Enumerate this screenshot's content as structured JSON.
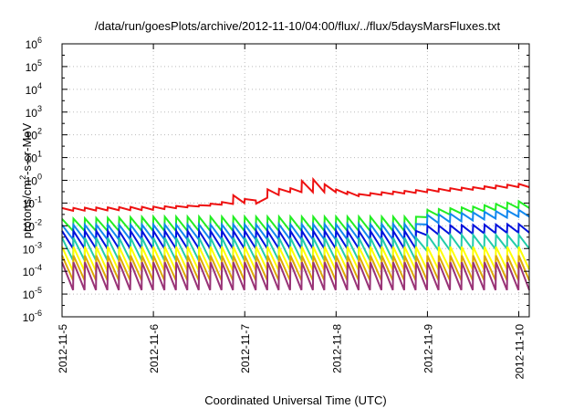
{
  "chart_data": {
    "type": "line",
    "title": "/data/run/goesPlots/archive/2012-11-10/04:00/flux/../flux/5daysMarsFluxes.txt",
    "xlabel": "Coordinated Universal Time (UTC)",
    "ylabel_parts": [
      "protons/cm",
      "2",
      "-s-sr-MeV"
    ],
    "yscale": "log",
    "ylim": [
      1e-06,
      1000000.0
    ],
    "xlim": [
      "2012-11-05",
      "2012-11-10 02:45"
    ],
    "xticks": [
      "2012-11-5",
      "2012-11-6",
      "2012-11-7",
      "2012-11-8",
      "2012-11-9",
      "2012-11-10"
    ],
    "yticks": [
      {
        "base": "10",
        "exp": "-6"
      },
      {
        "base": "10",
        "exp": "-5"
      },
      {
        "base": "10",
        "exp": "-4"
      },
      {
        "base": "10",
        "exp": "-3"
      },
      {
        "base": "10",
        "exp": "-2"
      },
      {
        "base": "10",
        "exp": "-1"
      },
      {
        "base": "10",
        "exp": "0"
      },
      {
        "base": "10",
        "exp": "1"
      },
      {
        "base": "10",
        "exp": "2"
      },
      {
        "base": "10",
        "exp": "3"
      },
      {
        "base": "10",
        "exp": "4"
      },
      {
        "base": "10",
        "exp": "5"
      },
      {
        "base": "10",
        "exp": "6"
      }
    ],
    "grid": true,
    "sawtooth_period_hours": 3,
    "series": [
      {
        "color": "#ee1111",
        "peaks": [
          [
            "2012-11-05 00:00",
            0.06
          ],
          [
            "2012-11-06 00:00",
            0.07
          ],
          [
            "2012-11-06 12:00",
            0.08
          ],
          [
            "2012-11-06 19:30",
            0.12
          ],
          [
            "2012-11-06 20:00",
            0.25
          ],
          [
            "2012-11-07 00:00",
            0.15
          ],
          [
            "2012-11-07 05:00",
            0.07
          ],
          [
            "2012-11-07 06:00",
            0.4
          ],
          [
            "2012-11-07 12:00",
            0.45
          ],
          [
            "2012-11-07 14:00",
            0.9
          ],
          [
            "2012-11-07 18:00",
            1.1
          ],
          [
            "2012-11-08 00:00",
            0.4
          ],
          [
            "2012-11-08 06:00",
            0.25
          ],
          [
            "2012-11-08 12:00",
            0.3
          ],
          [
            "2012-11-09 00:00",
            0.4
          ],
          [
            "2012-11-09 12:00",
            0.5
          ],
          [
            "2012-11-10 00:00",
            0.7
          ],
          [
            "2012-11-10 02:45",
            0.6
          ]
        ],
        "minima": [
          [
            "2012-11-05 00:00",
            0.045
          ],
          [
            "2012-11-06 00:00",
            0.05
          ],
          [
            "2012-11-07 00:00",
            0.1
          ],
          [
            "2012-11-07 12:00",
            0.3
          ],
          [
            "2012-11-08 00:00",
            0.3
          ],
          [
            "2012-11-08 06:00",
            0.2
          ],
          [
            "2012-11-09 00:00",
            0.3
          ],
          [
            "2012-11-10 00:00",
            0.5
          ],
          [
            "2012-11-10 02:45",
            0.5
          ]
        ]
      },
      {
        "color": "#22ee22",
        "peaks": [
          [
            "2012-11-05 00:00",
            0.02
          ],
          [
            "2012-11-06 00:00",
            0.025
          ],
          [
            "2012-11-07 00:00",
            0.025
          ],
          [
            "2012-11-08 00:00",
            0.025
          ],
          [
            "2012-11-08 21:00",
            0.025
          ],
          [
            "2012-11-09 00:00",
            0.05
          ],
          [
            "2012-11-09 12:00",
            0.07
          ],
          [
            "2012-11-10 00:00",
            0.12
          ],
          [
            "2012-11-10 02:45",
            0.12
          ]
        ],
        "minima": [
          [
            "2012-11-05 00:00",
            0.006
          ],
          [
            "2012-11-08 21:00",
            0.006
          ],
          [
            "2012-11-09 00:00",
            0.025
          ],
          [
            "2012-11-10 00:00",
            0.06
          ],
          [
            "2012-11-10 02:45",
            0.06
          ]
        ]
      },
      {
        "color": "#1188ee",
        "peaks": [
          [
            "2012-11-05 00:00",
            0.011
          ],
          [
            "2012-11-08 21:00",
            0.012
          ],
          [
            "2012-11-09 00:00",
            0.03
          ],
          [
            "2012-11-10 00:00",
            0.05
          ],
          [
            "2012-11-10 02:45",
            0.05
          ]
        ],
        "minima": [
          [
            "2012-11-05 00:00",
            0.0025
          ],
          [
            "2012-11-08 21:00",
            0.0025
          ],
          [
            "2012-11-09 00:00",
            0.012
          ],
          [
            "2012-11-10 00:00",
            0.025
          ],
          [
            "2012-11-10 02:45",
            0.025
          ]
        ]
      },
      {
        "color": "#0011dd",
        "peaks": [
          [
            "2012-11-05 00:00",
            0.006
          ],
          [
            "2012-11-08 21:00",
            0.006
          ],
          [
            "2012-11-09 00:00",
            0.01
          ],
          [
            "2012-11-10 00:00",
            0.012
          ],
          [
            "2012-11-10 02:45",
            0.012
          ]
        ],
        "minima": [
          [
            "2012-11-05 00:00",
            0.001
          ],
          [
            "2012-11-08 21:00",
            0.001
          ],
          [
            "2012-11-09 00:00",
            0.004
          ],
          [
            "2012-11-10 00:00",
            0.005
          ],
          [
            "2012-11-10 02:45",
            0.005
          ]
        ]
      },
      {
        "color": "#22ccaa",
        "peaks": [
          [
            "2012-11-05 00:00",
            0.003
          ],
          [
            "2012-11-08 21:00",
            0.003
          ],
          [
            "2012-11-09 00:00",
            0.004
          ],
          [
            "2012-11-10 00:00",
            0.004
          ],
          [
            "2012-11-10 02:45",
            0.004
          ]
        ],
        "minima": [
          [
            "2012-11-05 00:00",
            0.0003
          ],
          [
            "2012-11-08 21:00",
            0.0003
          ],
          [
            "2012-11-09 00:00",
            0.0008
          ],
          [
            "2012-11-10 00:00",
            0.001
          ],
          [
            "2012-11-10 02:45",
            0.001
          ]
        ]
      },
      {
        "color": "#ffff00",
        "peaks": [
          [
            "2012-11-05 00:00",
            0.0012
          ],
          [
            "2012-11-10 02:45",
            0.0012
          ]
        ],
        "minima": [
          [
            "2012-11-05 00:00",
            0.0001
          ],
          [
            "2012-11-10 02:45",
            0.00012
          ]
        ]
      },
      {
        "color": "#ddaa00",
        "peaks": [
          [
            "2012-11-05 00:00",
            0.0005
          ],
          [
            "2012-11-10 02:45",
            0.0005
          ]
        ],
        "minima": [
          [
            "2012-11-05 00:00",
            4e-05
          ],
          [
            "2012-11-10 02:45",
            4e-05
          ]
        ]
      },
      {
        "color": "#993377",
        "peaks": [
          [
            "2012-11-05 00:00",
            0.00025
          ],
          [
            "2012-11-10 02:45",
            0.00025
          ]
        ],
        "minima": [
          [
            "2012-11-05 00:00",
            1.5e-05
          ],
          [
            "2012-11-10 02:45",
            1.5e-05
          ]
        ]
      }
    ]
  }
}
